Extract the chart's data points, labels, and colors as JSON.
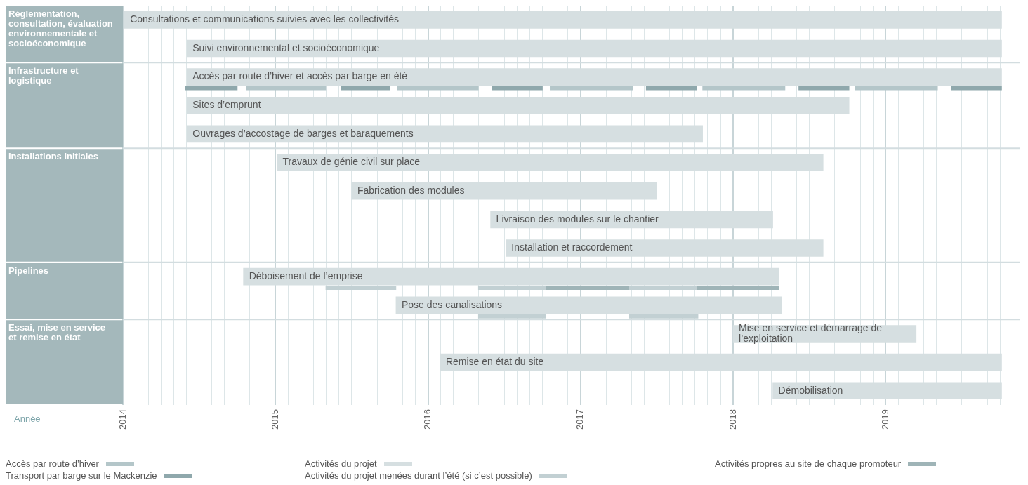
{
  "chart_data": {
    "type": "bar",
    "orientation": "horizontal",
    "categories": [
      "Consultations et communications suivies avec les collectivités",
      "Suivi environnemental et socioéconomique",
      "Accès par route d’hiver et accès par barge en été",
      "Sites d’emprunt",
      "Ouvrages d’accostage de barges et baraquements",
      "Travaux de génie civil sur place",
      "Fabrication des modules",
      "Livraison des modules sur le chantier",
      "Installation et raccordement",
      "Déboisement de l’emprise",
      "Pose des canalisations",
      "Mise en service et démarrage de l’exploitation",
      "Remise en état du site",
      "Démobilisation"
    ],
    "series": [
      {
        "name": "Accès par route d’hiver",
        "color": "#b4c6c9",
        "base": [
          null,
          null,
          2014.81,
          null,
          null,
          null,
          null,
          null,
          null,
          null,
          null,
          null,
          null,
          null
        ],
        "values": [
          null,
          null,
          0.52,
          null,
          null,
          null,
          null,
          null,
          null,
          null,
          null,
          null,
          null,
          null
        ]
      },
      {
        "color": "#b4c6c9",
        "base": [
          null,
          null,
          2015.8,
          null,
          null,
          null,
          null,
          null,
          null,
          null,
          null,
          null,
          null,
          null
        ],
        "values": [
          null,
          null,
          0.53,
          null,
          null,
          null,
          null,
          null,
          null,
          null,
          null,
          null,
          null,
          null
        ]
      },
      {
        "color": "#b4c6c9",
        "base": [
          null,
          null,
          2016.8,
          null,
          null,
          null,
          null,
          null,
          null,
          null,
          null,
          null,
          null,
          null
        ],
        "values": [
          null,
          null,
          0.54,
          null,
          null,
          null,
          null,
          null,
          null,
          null,
          null,
          null,
          null,
          null
        ]
      },
      {
        "color": "#b4c6c9",
        "base": [
          null,
          null,
          2017.8,
          null,
          null,
          null,
          null,
          null,
          null,
          null,
          null,
          null,
          null,
          null
        ],
        "values": [
          null,
          null,
          0.54,
          null,
          null,
          null,
          null,
          null,
          null,
          null,
          null,
          null,
          null,
          null
        ]
      },
      {
        "color": "#b4c6c9",
        "base": [
          null,
          null,
          2018.8,
          null,
          null,
          null,
          null,
          null,
          null,
          null,
          null,
          null,
          null,
          null
        ],
        "values": [
          null,
          null,
          0.54,
          null,
          null,
          null,
          null,
          null,
          null,
          null,
          null,
          null,
          null,
          null
        ]
      },
      {
        "name": "Transport par barge sur le Mackenzie",
        "color": "#8fa8ac",
        "base": [
          null,
          null,
          2014.41,
          null,
          null,
          null,
          null,
          null,
          null,
          null,
          null,
          null,
          null,
          null
        ],
        "values": [
          null,
          null,
          0.34,
          null,
          null,
          null,
          null,
          null,
          null,
          null,
          null,
          null,
          null,
          null
        ]
      },
      {
        "color": "#8fa8ac",
        "base": [
          null,
          null,
          2015.43,
          null,
          null,
          null,
          null,
          null,
          null,
          null,
          null,
          null,
          null,
          null
        ],
        "values": [
          null,
          null,
          0.32,
          null,
          null,
          null,
          null,
          null,
          null,
          null,
          null,
          null,
          null,
          null
        ]
      },
      {
        "color": "#8fa8ac",
        "base": [
          null,
          null,
          2016.42,
          null,
          null,
          null,
          null,
          null,
          null,
          null,
          null,
          null,
          null,
          null
        ],
        "values": [
          null,
          null,
          0.33,
          null,
          null,
          null,
          null,
          null,
          null,
          null,
          null,
          null,
          null,
          null
        ]
      },
      {
        "color": "#8fa8ac",
        "base": [
          null,
          null,
          2017.43,
          null,
          null,
          null,
          null,
          null,
          null,
          null,
          null,
          null,
          null,
          null
        ],
        "values": [
          null,
          null,
          0.33,
          null,
          null,
          null,
          null,
          null,
          null,
          null,
          null,
          null,
          null,
          null
        ]
      },
      {
        "color": "#8fa8ac",
        "base": [
          null,
          null,
          2018.43,
          null,
          null,
          null,
          null,
          null,
          null,
          null,
          null,
          null,
          null,
          null
        ],
        "values": [
          null,
          null,
          0.33,
          null,
          null,
          null,
          null,
          null,
          null,
          null,
          null,
          null,
          null,
          null
        ]
      },
      {
        "color": "#8fa8ac",
        "base": [
          null,
          null,
          2019.43,
          null,
          null,
          null,
          null,
          null,
          null,
          null,
          null,
          null,
          null,
          null
        ],
        "values": [
          null,
          null,
          0.33,
          null,
          null,
          null,
          null,
          null,
          null,
          null,
          null,
          null,
          null,
          null
        ]
      },
      {
        "name": "Activités du projet",
        "color": "#d6dfe1",
        "base": [
          2014.01,
          2014.42,
          2014.42,
          2014.42,
          2014.42,
          2015.01,
          2015.5,
          2016.41,
          2016.51,
          2014.79,
          2015.79,
          2018.0,
          2016.08,
          2018.26
        ],
        "values": [
          5.75,
          5.34,
          5.34,
          4.34,
          3.38,
          3.58,
          2.0,
          1.85,
          2.08,
          3.51,
          2.53,
          1.2,
          3.68,
          1.5
        ]
      },
      {
        "name": "Activités du projet menées durant l’été (si c’est possible)",
        "color": "#c2d0d3",
        "base": [
          null,
          null,
          null,
          null,
          null,
          null,
          null,
          null,
          null,
          2015.33,
          null,
          null,
          null,
          null
        ],
        "values": [
          null,
          null,
          null,
          null,
          null,
          null,
          null,
          null,
          null,
          0.46,
          null,
          null,
          null,
          null
        ]
      },
      {
        "color": "#c2d0d3",
        "base": [
          null,
          null,
          null,
          null,
          null,
          null,
          null,
          null,
          null,
          2016.33,
          2016.33,
          null,
          null,
          null
        ],
        "values": [
          null,
          null,
          null,
          null,
          null,
          null,
          null,
          null,
          null,
          0.44,
          0.44,
          null,
          null,
          null
        ]
      },
      {
        "color": "#c2d0d3",
        "base": [
          null,
          null,
          null,
          null,
          null,
          null,
          null,
          null,
          null,
          2017.32,
          2017.32,
          null,
          null,
          null
        ],
        "values": [
          null,
          null,
          null,
          null,
          null,
          null,
          null,
          null,
          null,
          0.44,
          0.45,
          null,
          null,
          null
        ]
      },
      {
        "name": "Activités propres au site de chaque promoteur",
        "color": "#9fb4b7",
        "base": [
          null,
          null,
          null,
          null,
          null,
          null,
          null,
          null,
          null,
          2016.77,
          null,
          null,
          null,
          null
        ],
        "values": [
          null,
          null,
          null,
          null,
          null,
          null,
          null,
          null,
          null,
          0.55,
          null,
          null,
          null,
          null
        ]
      },
      {
        "color": "#9fb4b7",
        "base": [
          null,
          null,
          null,
          null,
          null,
          null,
          null,
          null,
          null,
          2017.76,
          null,
          null,
          null,
          null
        ],
        "values": [
          null,
          null,
          null,
          null,
          null,
          null,
          null,
          null,
          null,
          0.54,
          null,
          null,
          null,
          null
        ]
      }
    ],
    "annotations": [
      "Réglementation, consultation, évaluation environnementale et socioéconomique",
      "Infrastructure et logistique",
      "Installations initiales",
      "Pipelines",
      "Essai, mise en service et remise en état",
      "Année"
    ],
    "xlim": [
      2014,
      2019.88
    ],
    "xticks": [
      2014,
      {
        "value": 2014.083,
        "label": null
      },
      {
        "value": 2014.167,
        "label": null
      },
      {
        "value": 2014.25,
        "label": null
      },
      {
        "value": 2014.333,
        "label": null
      },
      {
        "value": 2014.417,
        "label": null
      },
      {
        "value": 2014.5,
        "label": null
      },
      {
        "value": 2014.583,
        "label": null
      },
      {
        "value": 2014.667,
        "label": null
      },
      {
        "value": 2014.75,
        "label": null
      },
      {
        "value": 2014.833,
        "label": null
      },
      {
        "value": 2014.917,
        "label": null
      },
      2015,
      {
        "value": 2015.083,
        "label": null
      },
      {
        "value": 2015.167,
        "label": null
      },
      {
        "value": 2015.25,
        "label": null
      },
      {
        "value": 2015.333,
        "label": null
      },
      {
        "value": 2015.417,
        "label": null
      },
      {
        "value": 2015.5,
        "label": null
      },
      {
        "value": 2015.583,
        "label": null
      },
      {
        "value": 2015.667,
        "label": null
      },
      {
        "value": 2015.75,
        "label": null
      },
      {
        "value": 2015.833,
        "label": null
      },
      {
        "value": 2015.917,
        "label": null
      },
      2016,
      {
        "value": 2016.083,
        "label": null
      },
      {
        "value": 2016.167,
        "label": null
      },
      {
        "value": 2016.25,
        "label": null
      },
      {
        "value": 2016.333,
        "label": null
      },
      {
        "value": 2016.417,
        "label": null
      },
      {
        "value": 2016.5,
        "label": null
      },
      {
        "value": 2016.583,
        "label": null
      },
      {
        "value": 2016.667,
        "label": null
      },
      {
        "value": 2016.75,
        "label": null
      },
      {
        "value": 2016.833,
        "label": null
      },
      {
        "value": 2016.917,
        "label": null
      },
      2017,
      {
        "value": 2017.083,
        "label": null
      },
      {
        "value": 2017.167,
        "label": null
      },
      {
        "value": 2017.25,
        "label": null
      },
      {
        "value": 2017.333,
        "label": null
      },
      {
        "value": 2017.417,
        "label": null
      },
      {
        "value": 2017.5,
        "label": null
      },
      {
        "value": 2017.583,
        "label": null
      },
      {
        "value": 2017.667,
        "label": null
      },
      {
        "value": 2017.75,
        "label": null
      },
      {
        "value": 2017.833,
        "label": null
      },
      {
        "value": 2017.917,
        "label": null
      },
      2018,
      {
        "value": 2018.083,
        "label": null
      },
      {
        "value": 2018.167,
        "label": null
      },
      {
        "value": 2018.25,
        "label": null
      },
      {
        "value": 2018.333,
        "label": null
      },
      {
        "value": 2018.417,
        "label": null
      },
      {
        "value": 2018.5,
        "label": null
      },
      {
        "value": 2018.583,
        "label": null
      },
      {
        "value": 2018.667,
        "label": null
      },
      {
        "value": 2018.75,
        "label": null
      },
      {
        "value": 2018.833,
        "label": null
      },
      {
        "value": 2018.917,
        "label": null
      },
      2019,
      {
        "value": 2019.083,
        "label": null
      },
      {
        "value": 2019.167,
        "label": null
      },
      {
        "value": 2019.25,
        "label": null
      },
      {
        "value": 2019.333,
        "label": null
      },
      {
        "value": 2019.417,
        "label": null
      },
      {
        "value": 2019.5,
        "label": null
      },
      {
        "value": 2019.583,
        "label": null
      },
      {
        "value": 2019.667,
        "label": null
      },
      {
        "value": 2019.75,
        "label": null
      },
      {
        "value": 2019.833,
        "label": null
      }
    ],
    "grid": "x",
    "tick_labels": "x",
    "legend": "bottom"
  }
}
